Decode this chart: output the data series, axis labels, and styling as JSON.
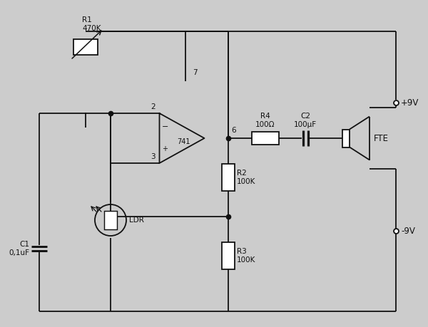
{
  "bg_color": "#cccccc",
  "line_color": "#111111",
  "fig_width": 6.0,
  "fig_height": 4.59,
  "dpi": 100,
  "xlim": [
    0,
    6.0
  ],
  "ylim": [
    0,
    4.59
  ],
  "components": {
    "R1_label": "R1\n470K",
    "R2_label": "R2\n100K",
    "R3_label": "R3\n100K",
    "R4_label": "R4\n100Ω",
    "C1_label": "C1\n0,1uF",
    "C2_label": "C2\n100μF",
    "LDR_label": "LDR",
    "IC_label": "741",
    "SPK_label": "FTE",
    "Vp_label": "+9V",
    "Vn_label": "-9V"
  }
}
